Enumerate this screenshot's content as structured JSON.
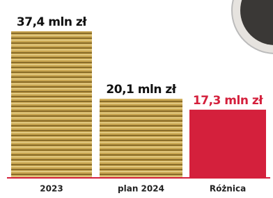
{
  "chart_data": {
    "type": "bar",
    "categories": [
      "2023",
      "plan 2024",
      "Różnica"
    ],
    "values": [
      37.4,
      20.1,
      17.3
    ],
    "value_labels": [
      "37,4 mln zł",
      "20,1 mln zł",
      "17,3 mln zł"
    ],
    "colors": [
      "#c9a650",
      "#c9a650",
      "#d4203c"
    ]
  }
}
